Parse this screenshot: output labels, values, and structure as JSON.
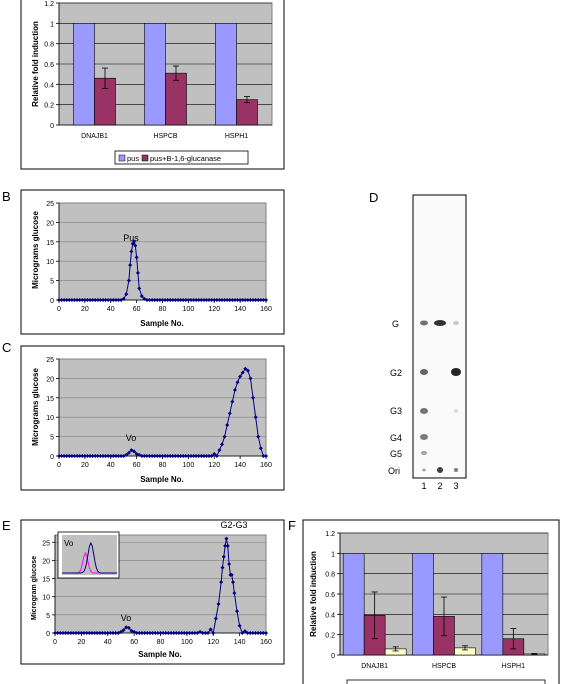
{
  "panel_labels": {
    "b": "B",
    "c": "C",
    "d": "D",
    "e": "E",
    "f": "F"
  },
  "colors": {
    "plot_bg": "#c0c0c0",
    "bar_pus": "#9999ff",
    "bar_glucanase": "#993366",
    "bar_third": "#ffffcc",
    "line_blue": "#000080",
    "inset_pink": "#ff00ff"
  },
  "chart_data": [
    {
      "panel": "A",
      "type": "bar",
      "categories": [
        "DNAJB1",
        "HSPCB",
        "HSPH1"
      ],
      "ylabel": "Relative fold induction",
      "yticks": [
        "0",
        "0.2",
        "0.4",
        "0.6",
        "0.8",
        "1",
        "1.2"
      ],
      "ylim": [
        0,
        1.2
      ],
      "series": [
        {
          "name": "pus",
          "values": [
            1,
            1,
            1
          ],
          "errors": [
            0,
            0,
            0
          ]
        },
        {
          "name": "pus+B-1,6-glucanase",
          "values": [
            0.46,
            0.51,
            0.25
          ],
          "errors": [
            0.1,
            0.07,
            0.03
          ]
        }
      ],
      "legend_position": "bottom"
    },
    {
      "panel": "B",
      "type": "line",
      "annotation": "Pus",
      "xlabel": "Sample No.",
      "ylabel": "Micrograms glucose",
      "xticks": [
        "0",
        "20",
        "40",
        "60",
        "80",
        "100",
        "120",
        "140",
        "160"
      ],
      "yticks": [
        "0",
        "5",
        "10",
        "15",
        "20",
        "25"
      ],
      "xlim": [
        0,
        160
      ],
      "ylim": [
        0,
        25
      ],
      "x": [
        50,
        52,
        54,
        55,
        56,
        57,
        58,
        59,
        60,
        61,
        62,
        64,
        66
      ],
      "y": [
        0.3,
        1.5,
        5,
        9,
        12.5,
        14.5,
        15,
        14,
        11,
        7,
        3,
        1,
        0.3
      ]
    },
    {
      "panel": "C",
      "type": "line",
      "annotation": "Vo",
      "xlabel": "Sample No.",
      "ylabel": "Micrograms glucose",
      "xticks": [
        "0",
        "20",
        "40",
        "60",
        "80",
        "100",
        "120",
        "140",
        "160"
      ],
      "yticks": [
        "0",
        "5",
        "10",
        "15",
        "20",
        "25"
      ],
      "xlim": [
        0,
        160
      ],
      "ylim": [
        0,
        25
      ],
      "x": [
        52,
        54,
        56,
        58,
        60,
        62,
        120,
        124,
        126,
        128,
        130,
        132,
        134,
        136,
        138,
        140,
        142,
        144,
        146,
        148,
        150,
        152,
        154,
        156
      ],
      "y": [
        0.3,
        0.8,
        1.5,
        1.2,
        0.5,
        0.3,
        0.5,
        1.5,
        3,
        5,
        8,
        11,
        14,
        17,
        19,
        20.5,
        21.5,
        22.5,
        22,
        20,
        15,
        10,
        5,
        2
      ]
    },
    {
      "panel": "E",
      "type": "line",
      "annotation_left": "Vo",
      "annotation_right": "G2-G3",
      "inset_label": "Vo",
      "xlabel": "Sample No.",
      "ylabel": "Microgram glucose",
      "xticks": [
        "0",
        "20",
        "40",
        "60",
        "80",
        "100",
        "120",
        "140",
        "160"
      ],
      "yticks": [
        "0",
        "5",
        "10",
        "15",
        "20",
        "25"
      ],
      "xlim": [
        0,
        160
      ],
      "ylim": [
        0,
        27
      ],
      "x": [
        50,
        52,
        54,
        56,
        58,
        60,
        110,
        118,
        122,
        124,
        126,
        127,
        128,
        129,
        130,
        131,
        132,
        133,
        134,
        135,
        136,
        138,
        140,
        144
      ],
      "y": [
        0.3,
        0.8,
        1.6,
        1.4,
        0.6,
        0.3,
        0.3,
        1,
        4,
        8,
        14,
        18,
        21,
        24,
        26,
        24,
        19,
        16,
        16,
        14,
        11,
        6,
        2,
        0.5
      ]
    },
    {
      "panel": "F",
      "type": "bar",
      "categories": [
        "DNAJB1",
        "HSPCB",
        "HSPH1"
      ],
      "ylabel": "Relative fold induction",
      "yticks": [
        "0",
        "0.2",
        "0.4",
        "0.6",
        "0.8",
        "1",
        "1.2"
      ],
      "ylim": [
        0,
        1.2
      ],
      "series": [
        {
          "values": [
            1,
            1,
            1
          ],
          "errors": [
            0,
            0,
            0
          ]
        },
        {
          "values": [
            0.39,
            0.38,
            0.16
          ],
          "errors": [
            0.23,
            0.19,
            0.1
          ]
        },
        {
          "values": [
            0.06,
            0.07,
            0.01
          ],
          "errors": [
            0.02,
            0.02,
            0.005
          ]
        }
      ]
    }
  ],
  "gel": {
    "lane_labels": [
      "1",
      "2",
      "3"
    ],
    "markers": [
      "G",
      "G2",
      "G3",
      "G4",
      "G5",
      "Ori"
    ]
  }
}
